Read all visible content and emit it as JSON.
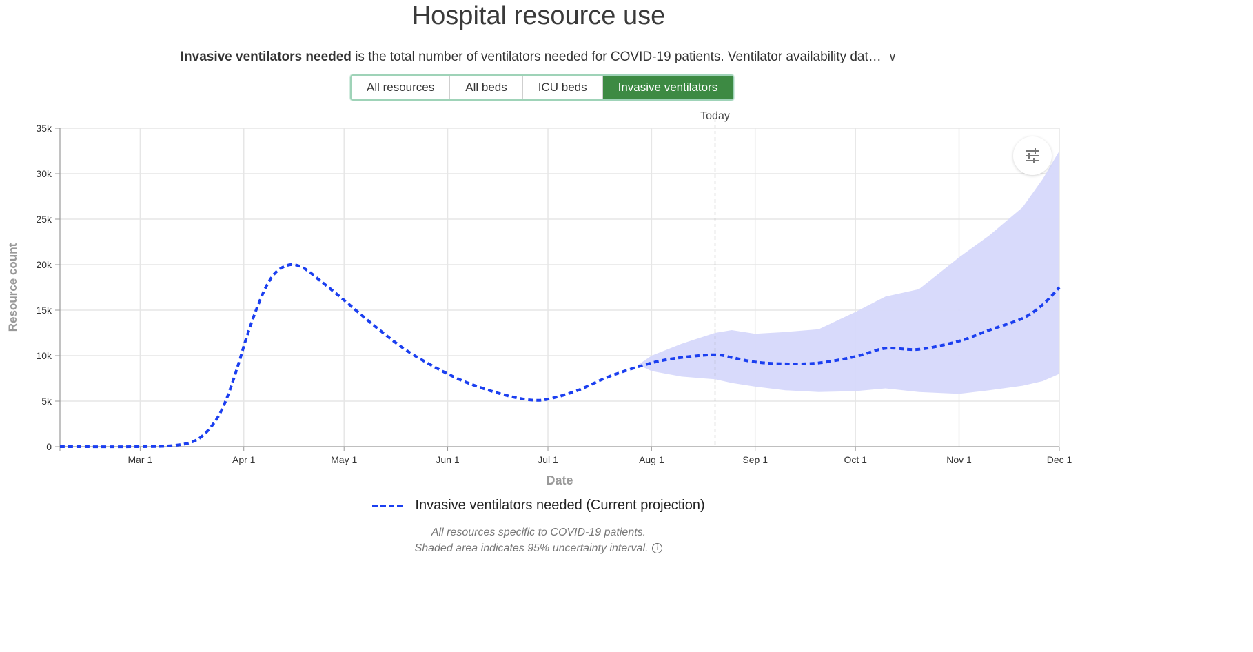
{
  "title": "Hospital resource use",
  "description": {
    "bold": "Invasive ventilators needed",
    "rest": " is the total number of ventilators needed for COVID-19 patients. Ventilator availability dat…",
    "expand_glyph": "∨"
  },
  "tabs": [
    {
      "label": "All resources",
      "active": false
    },
    {
      "label": "All beds",
      "active": false
    },
    {
      "label": "ICU beds",
      "active": false
    },
    {
      "label": "Invasive ventilators",
      "active": true
    }
  ],
  "colors": {
    "series": "#1b3ff0",
    "band": "#d6d8fb",
    "active_tab": "#3d8a43",
    "grid": "#e6e6e6"
  },
  "chart_data": {
    "type": "line",
    "xlabel": "Date",
    "ylabel": "Resource count",
    "xlim": [
      "2020-02-06",
      "2020-12-01"
    ],
    "ylim": [
      0,
      35000
    ],
    "x_ticks": [
      {
        "date": "2020-03-01",
        "label": "Mar 1"
      },
      {
        "date": "2020-04-01",
        "label": "Apr 1"
      },
      {
        "date": "2020-05-01",
        "label": "May 1"
      },
      {
        "date": "2020-06-01",
        "label": "Jun 1"
      },
      {
        "date": "2020-07-01",
        "label": "Jul 1"
      },
      {
        "date": "2020-08-01",
        "label": "Aug 1"
      },
      {
        "date": "2020-09-01",
        "label": "Sep 1"
      },
      {
        "date": "2020-10-01",
        "label": "Oct 1"
      },
      {
        "date": "2020-11-01",
        "label": "Nov 1"
      },
      {
        "date": "2020-12-01",
        "label": "Dec 1"
      }
    ],
    "y_ticks": [
      {
        "value": 0,
        "label": "0"
      },
      {
        "value": 5000,
        "label": "5k"
      },
      {
        "value": 10000,
        "label": "10k"
      },
      {
        "value": 15000,
        "label": "15k"
      },
      {
        "value": 20000,
        "label": "20k"
      },
      {
        "value": 25000,
        "label": "25k"
      },
      {
        "value": 30000,
        "label": "30k"
      },
      {
        "value": 35000,
        "label": "35k"
      }
    ],
    "grid": true,
    "today": {
      "label": "Today",
      "date": "2020-08-20"
    },
    "series": [
      {
        "name": "Invasive ventilators needed (Current projection)",
        "style": "dashed",
        "points": [
          [
            "2020-02-06",
            0
          ],
          [
            "2020-03-01",
            0
          ],
          [
            "2020-03-10",
            100
          ],
          [
            "2020-03-16",
            450
          ],
          [
            "2020-03-20",
            1300
          ],
          [
            "2020-03-24",
            3100
          ],
          [
            "2020-03-27",
            5400
          ],
          [
            "2020-03-30",
            8600
          ],
          [
            "2020-04-02",
            12200
          ],
          [
            "2020-04-05",
            15300
          ],
          [
            "2020-04-08",
            17800
          ],
          [
            "2020-04-11",
            19300
          ],
          [
            "2020-04-15",
            20000
          ],
          [
            "2020-04-19",
            19600
          ],
          [
            "2020-04-24",
            18200
          ],
          [
            "2020-05-01",
            16100
          ],
          [
            "2020-05-10",
            13300
          ],
          [
            "2020-05-20",
            10500
          ],
          [
            "2020-06-01",
            8000
          ],
          [
            "2020-06-10",
            6600
          ],
          [
            "2020-06-20",
            5500
          ],
          [
            "2020-06-27",
            5100
          ],
          [
            "2020-07-02",
            5300
          ],
          [
            "2020-07-10",
            6200
          ],
          [
            "2020-07-20",
            7800
          ],
          [
            "2020-08-01",
            9200
          ],
          [
            "2020-08-10",
            9800
          ],
          [
            "2020-08-20",
            10100
          ],
          [
            "2020-08-25",
            9800
          ],
          [
            "2020-09-01",
            9300
          ],
          [
            "2020-09-10",
            9100
          ],
          [
            "2020-09-20",
            9200
          ],
          [
            "2020-10-01",
            9900
          ],
          [
            "2020-10-10",
            10800
          ],
          [
            "2020-10-20",
            10700
          ],
          [
            "2020-11-01",
            11600
          ],
          [
            "2020-11-10",
            12800
          ],
          [
            "2020-11-20",
            14100
          ],
          [
            "2020-11-26",
            15600
          ],
          [
            "2020-12-01",
            17500
          ]
        ]
      }
    ],
    "uncertainty_band": {
      "label": "95% uncertainty interval",
      "points": [
        [
          "2020-07-28",
          9000,
          9000
        ],
        [
          "2020-08-01",
          8300,
          10000
        ],
        [
          "2020-08-10",
          7700,
          11300
        ],
        [
          "2020-08-20",
          7400,
          12500
        ],
        [
          "2020-08-25",
          7000,
          12800
        ],
        [
          "2020-09-01",
          6600,
          12400
        ],
        [
          "2020-09-10",
          6200,
          12600
        ],
        [
          "2020-09-20",
          6000,
          12900
        ],
        [
          "2020-10-01",
          6100,
          14800
        ],
        [
          "2020-10-10",
          6400,
          16500
        ],
        [
          "2020-10-20",
          6000,
          17300
        ],
        [
          "2020-11-01",
          5800,
          20800
        ],
        [
          "2020-11-10",
          6200,
          23200
        ],
        [
          "2020-11-20",
          6700,
          26300
        ],
        [
          "2020-11-26",
          7200,
          29400
        ],
        [
          "2020-12-01",
          8000,
          32500
        ]
      ]
    }
  },
  "legend_label": "Invasive ventilators needed (Current projection)",
  "footnote": {
    "line1": "All resources specific to COVID-19 patients.",
    "line2": "Shaded area indicates 95% uncertainty interval.",
    "info_glyph": "i"
  },
  "icons": {
    "settings": "sliders-icon",
    "info": "info-icon",
    "expand": "chevron-down-icon"
  }
}
